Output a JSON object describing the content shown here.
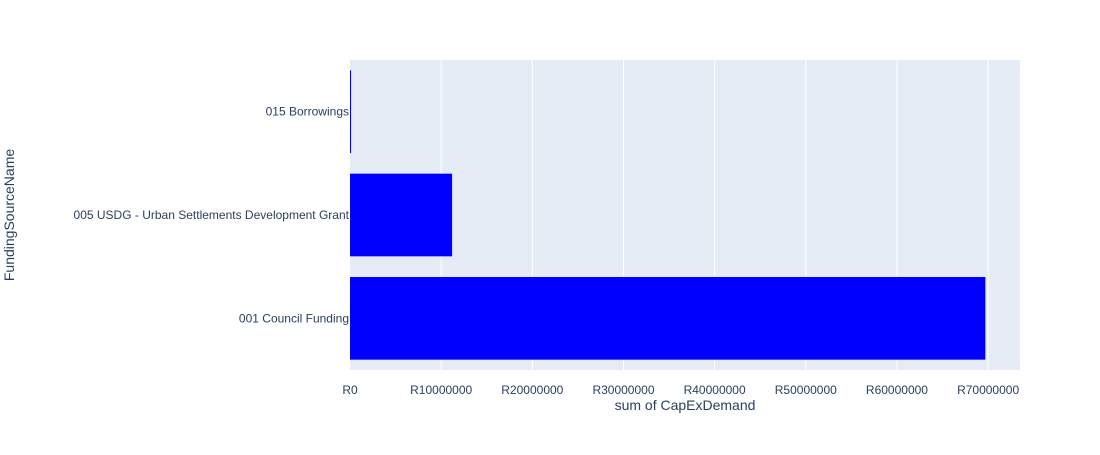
{
  "chart_data": {
    "type": "bar",
    "orientation": "horizontal",
    "categories": [
      "001 Council Funding",
      "005 USDG - Urban Settlements Development Grant",
      "015 Borrowings"
    ],
    "values": [
      69700000,
      11200000,
      120000
    ],
    "xlabel": "sum of CapExDemand",
    "ylabel": "FundingSourceName",
    "xlim": [
      0,
      73500000
    ],
    "xticks": [
      0,
      10000000,
      20000000,
      30000000,
      40000000,
      50000000,
      60000000,
      70000000
    ],
    "xtick_labels": [
      "R0",
      "R10000000",
      "R20000000",
      "R30000000",
      "R40000000",
      "R50000000",
      "R60000000",
      "R70000000"
    ],
    "grid": true,
    "colors": {
      "bar": "#0000ff",
      "plot_bg": "#e5ecf6",
      "grid": "#ffffff",
      "text": "#2a3f5f"
    }
  }
}
